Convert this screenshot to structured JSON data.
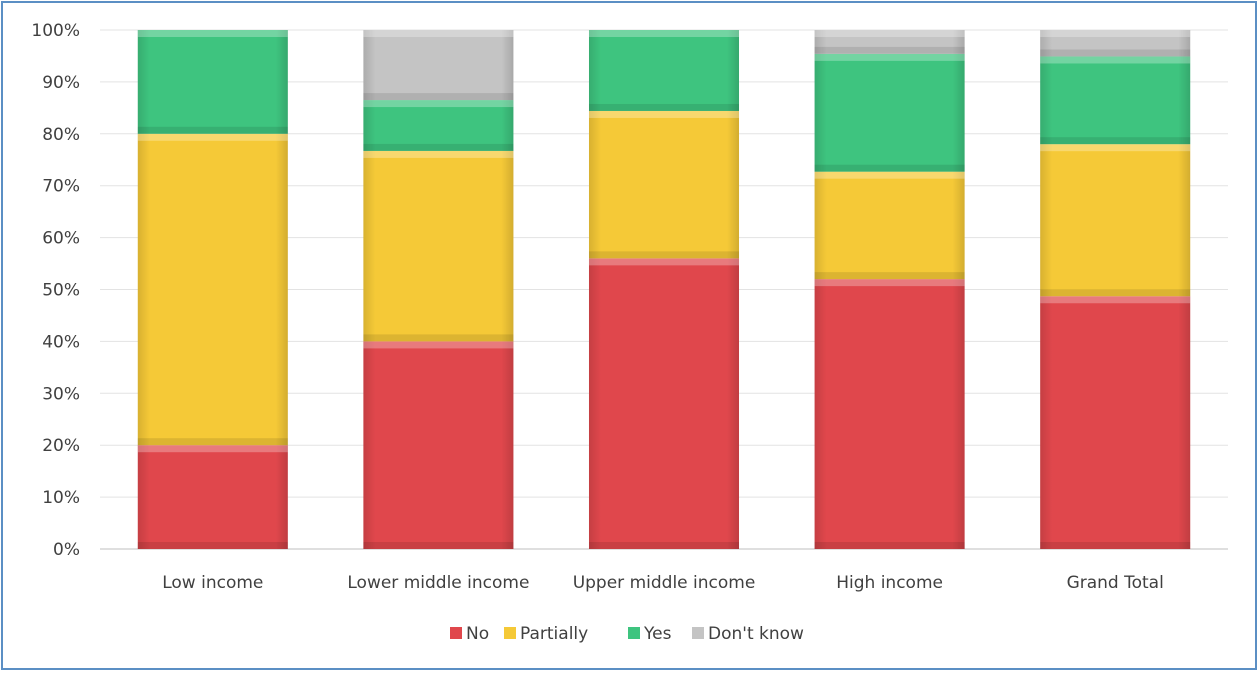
{
  "chart_data": {
    "type": "bar",
    "stacked": true,
    "percent": true,
    "categories": [
      "Low income",
      "Lower middle income",
      "Upper middle income",
      "High income",
      "Grand Total"
    ],
    "series": [
      {
        "name": "No",
        "color": "#e0474c",
        "values": [
          20,
          40,
          56,
          52,
          48.7
        ]
      },
      {
        "name": "Partially",
        "color": "#f5c937",
        "values": [
          60,
          36.7,
          28.4,
          20.7,
          29.3
        ]
      },
      {
        "name": "Yes",
        "color": "#3ec47f",
        "values": [
          20,
          9.8,
          15.6,
          22.7,
          16.9
        ]
      },
      {
        "name": "Don't know",
        "color": "#c4c4c4",
        "values": [
          0,
          13.5,
          0,
          4.6,
          5.1
        ]
      }
    ],
    "ylim": [
      0,
      100
    ],
    "yticks": [
      "0%",
      "10%",
      "20%",
      "30%",
      "40%",
      "50%",
      "60%",
      "70%",
      "80%",
      "90%",
      "100%"
    ],
    "grid": true,
    "legend": "bottom"
  }
}
